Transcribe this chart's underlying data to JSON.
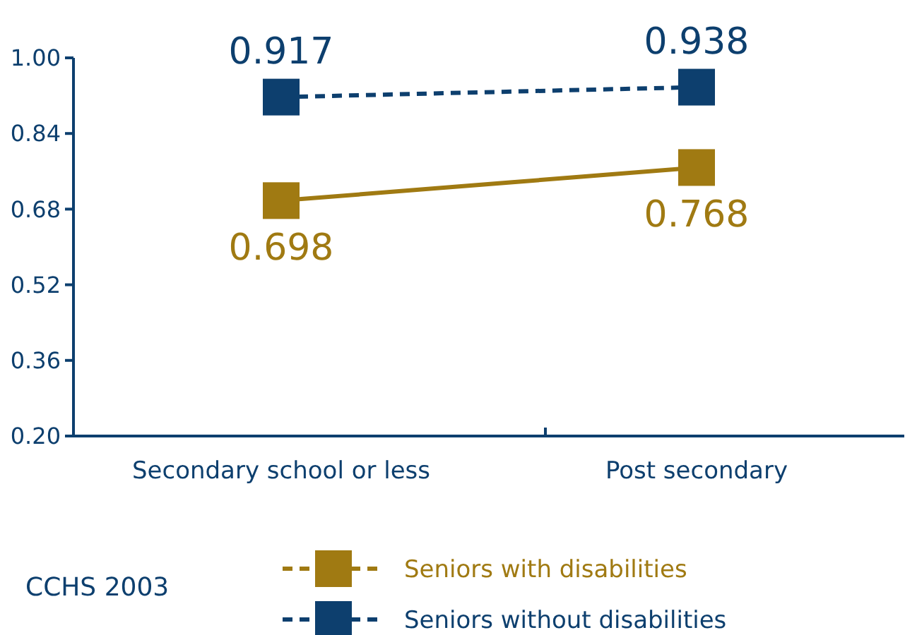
{
  "chart_data": {
    "type": "line",
    "categories": [
      "Secondary school or less",
      "Post secondary"
    ],
    "series": [
      {
        "name": "Seniors with disabilities",
        "color": "#a07a12",
        "values": [
          0.698,
          0.768
        ],
        "line_style": "solid"
      },
      {
        "name": "Seniors without disabilities",
        "color": "#0d3f6e",
        "values": [
          0.917,
          0.938
        ],
        "line_style": "dashed"
      }
    ],
    "ylim": [
      0.2,
      1.0
    ],
    "yticks": [
      {
        "value": 0.2,
        "label": "0.20"
      },
      {
        "value": 0.36,
        "label": "0.36"
      },
      {
        "value": 0.52,
        "label": "0.52"
      },
      {
        "value": 0.68,
        "label": "0.68"
      },
      {
        "value": 0.84,
        "label": "0.84"
      },
      {
        "value": 1.0,
        "label": "1.00"
      }
    ],
    "marker": "square",
    "data_labels": true,
    "grid": false,
    "legend": "bottom",
    "annotations": [
      "CCHS 2003"
    ]
  }
}
